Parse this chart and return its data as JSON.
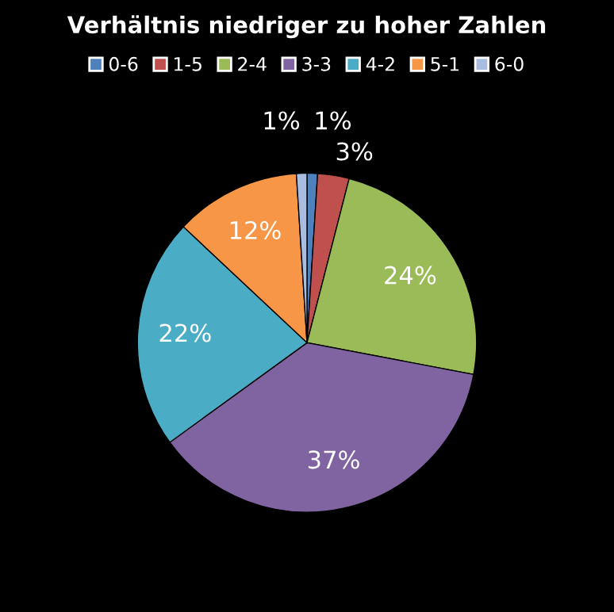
{
  "chart_data": {
    "type": "pie",
    "title": "Verhältnis niedriger zu hoher Zahlen",
    "categories": [
      "0-6",
      "1-5",
      "2-4",
      "3-3",
      "4-2",
      "5-1",
      "6-0"
    ],
    "values": [
      1,
      3,
      24,
      37,
      22,
      12,
      1
    ],
    "colors": [
      "#4f81bd",
      "#c0504d",
      "#9bbb59",
      "#8064a2",
      "#4bacc6",
      "#f79646",
      "#a9bde0"
    ],
    "value_labels": [
      "1%",
      "3%",
      "24%",
      "37%",
      "22%",
      "12%",
      "1%"
    ],
    "legend": "top"
  }
}
